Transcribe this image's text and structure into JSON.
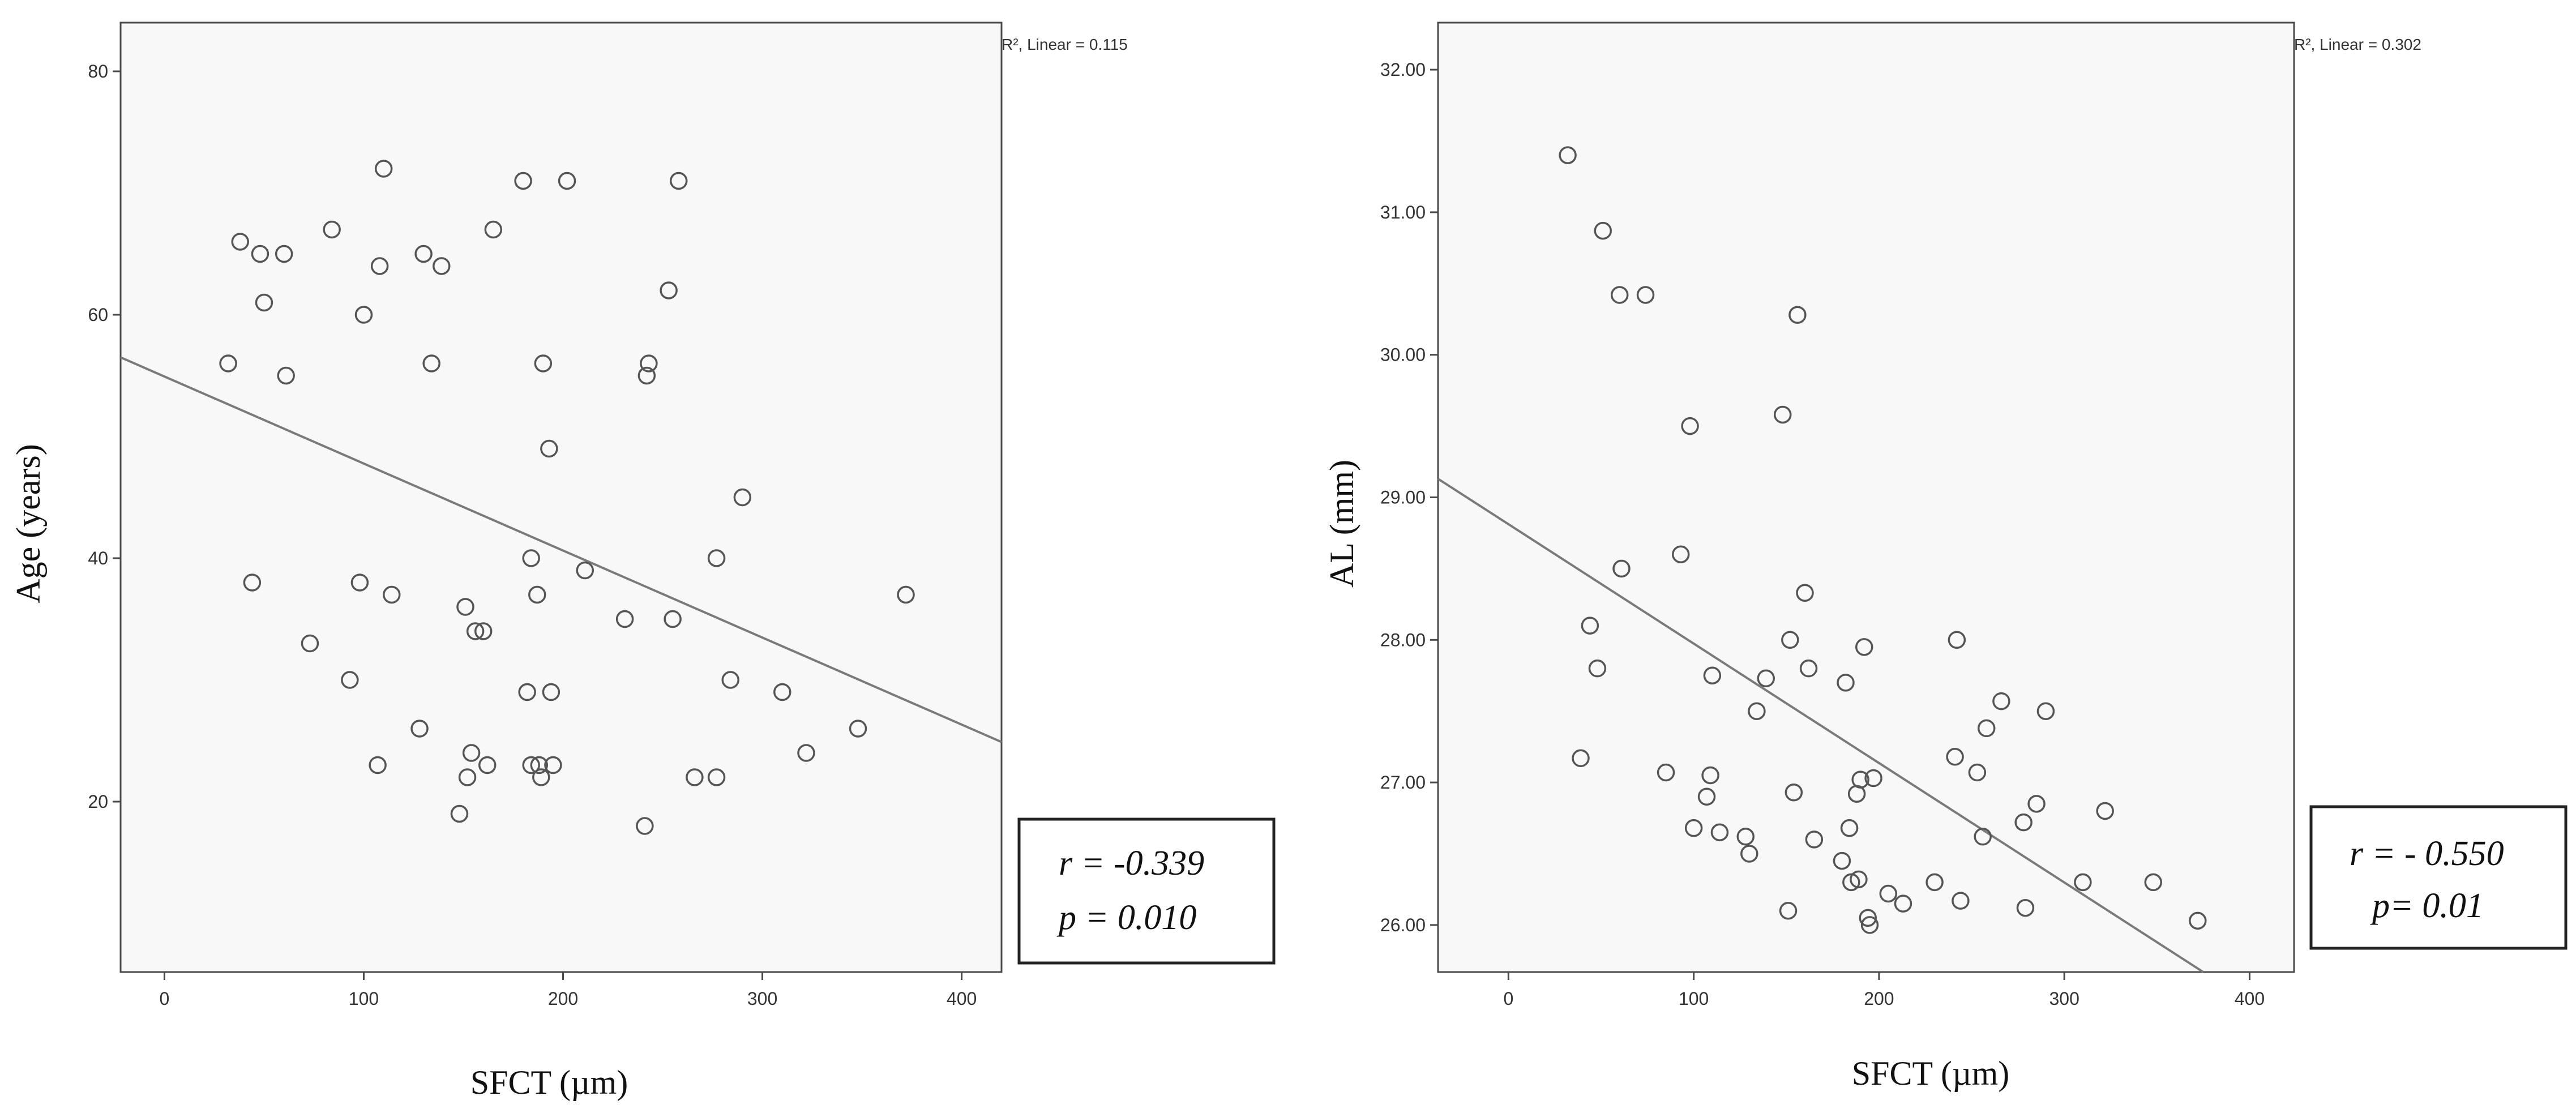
{
  "chart_data": [
    {
      "type": "scatter",
      "title": "",
      "xlabel": "SFCT (µm)",
      "ylabel": "Age  (years)",
      "xlim": [
        -22,
        420
      ],
      "ylim": [
        6,
        84
      ],
      "x_ticks": [
        0,
        100,
        200,
        300,
        400
      ],
      "x_tick_labels": [
        "0",
        "100",
        "200",
        "300",
        "400"
      ],
      "y_ticks": [
        20,
        40,
        60,
        80
      ],
      "y_tick_labels": [
        "20",
        "40",
        "60",
        "80"
      ],
      "grid": false,
      "fit_label": "R², Linear = 0.115",
      "fit_line": {
        "x": [
          -22,
          420
        ],
        "y": [
          56.5,
          24.9
        ]
      },
      "annotation_r": "r =  -0.339",
      "annotation_p": "p = 0.010",
      "points": [
        {
          "x": 32,
          "y": 56
        },
        {
          "x": 38,
          "y": 66
        },
        {
          "x": 44,
          "y": 38
        },
        {
          "x": 48,
          "y": 65
        },
        {
          "x": 50,
          "y": 61
        },
        {
          "x": 60,
          "y": 65
        },
        {
          "x": 61,
          "y": 55
        },
        {
          "x": 73,
          "y": 33
        },
        {
          "x": 84,
          "y": 67
        },
        {
          "x": 93,
          "y": 30
        },
        {
          "x": 98,
          "y": 38
        },
        {
          "x": 100,
          "y": 60
        },
        {
          "x": 107,
          "y": 23
        },
        {
          "x": 108,
          "y": 64
        },
        {
          "x": 110,
          "y": 72
        },
        {
          "x": 114,
          "y": 37
        },
        {
          "x": 128,
          "y": 26
        },
        {
          "x": 130,
          "y": 65
        },
        {
          "x": 134,
          "y": 56
        },
        {
          "x": 139,
          "y": 64
        },
        {
          "x": 148,
          "y": 19
        },
        {
          "x": 151,
          "y": 36
        },
        {
          "x": 152,
          "y": 22
        },
        {
          "x": 154,
          "y": 24
        },
        {
          "x": 156,
          "y": 34
        },
        {
          "x": 160,
          "y": 34
        },
        {
          "x": 162,
          "y": 23
        },
        {
          "x": 165,
          "y": 67
        },
        {
          "x": 180,
          "y": 71
        },
        {
          "x": 182,
          "y": 29
        },
        {
          "x": 184,
          "y": 23
        },
        {
          "x": 184,
          "y": 40
        },
        {
          "x": 187,
          "y": 37
        },
        {
          "x": 188,
          "y": 23
        },
        {
          "x": 189,
          "y": 22
        },
        {
          "x": 190,
          "y": 56
        },
        {
          "x": 193,
          "y": 49
        },
        {
          "x": 194,
          "y": 29
        },
        {
          "x": 195,
          "y": 23
        },
        {
          "x": 202,
          "y": 71
        },
        {
          "x": 211,
          "y": 39
        },
        {
          "x": 231,
          "y": 35
        },
        {
          "x": 241,
          "y": 18
        },
        {
          "x": 242,
          "y": 55
        },
        {
          "x": 243,
          "y": 56
        },
        {
          "x": 253,
          "y": 62
        },
        {
          "x": 255,
          "y": 35
        },
        {
          "x": 258,
          "y": 71
        },
        {
          "x": 266,
          "y": 22
        },
        {
          "x": 277,
          "y": 40
        },
        {
          "x": 277,
          "y": 22
        },
        {
          "x": 284,
          "y": 30
        },
        {
          "x": 290,
          "y": 45
        },
        {
          "x": 310,
          "y": 29
        },
        {
          "x": 322,
          "y": 24
        },
        {
          "x": 348,
          "y": 26
        },
        {
          "x": 372,
          "y": 37
        }
      ]
    },
    {
      "type": "scatter",
      "title": "",
      "xlabel": "SFCT (µm)",
      "ylabel": "AL  (mm)",
      "xlim": [
        -38,
        424
      ],
      "ylim": [
        25.67,
        32.33
      ],
      "x_ticks": [
        0,
        100,
        200,
        300,
        400
      ],
      "x_tick_labels": [
        "0",
        "100",
        "200",
        "300",
        "400"
      ],
      "y_ticks": [
        26,
        27,
        28,
        29,
        30,
        31,
        32
      ],
      "y_tick_labels": [
        "26.00",
        "27.00",
        "28.00",
        "29.00",
        "30.00",
        "31.00",
        "32.00"
      ],
      "grid": false,
      "fit_label": "R², Linear = 0.302",
      "fit_line": {
        "x": [
          -38,
          375
        ],
        "y": [
          29.13,
          25.67
        ]
      },
      "annotation_r": "r = - 0.550",
      "annotation_p": "p= 0.01",
      "points": [
        {
          "x": 32,
          "y": 31.4
        },
        {
          "x": 39,
          "y": 27.17
        },
        {
          "x": 44,
          "y": 28.1
        },
        {
          "x": 48,
          "y": 27.8
        },
        {
          "x": 51,
          "y": 30.87
        },
        {
          "x": 60,
          "y": 30.42
        },
        {
          "x": 61,
          "y": 28.5
        },
        {
          "x": 74,
          "y": 30.42
        },
        {
          "x": 85,
          "y": 27.07
        },
        {
          "x": 93,
          "y": 28.6
        },
        {
          "x": 98,
          "y": 29.5
        },
        {
          "x": 100,
          "y": 26.68
        },
        {
          "x": 107,
          "y": 26.9
        },
        {
          "x": 109,
          "y": 27.05
        },
        {
          "x": 110,
          "y": 27.75
        },
        {
          "x": 114,
          "y": 26.65
        },
        {
          "x": 128,
          "y": 26.62
        },
        {
          "x": 130,
          "y": 26.5
        },
        {
          "x": 134,
          "y": 27.5
        },
        {
          "x": 139,
          "y": 27.73
        },
        {
          "x": 148,
          "y": 29.58
        },
        {
          "x": 151,
          "y": 26.1
        },
        {
          "x": 152,
          "y": 28.0
        },
        {
          "x": 154,
          "y": 26.93
        },
        {
          "x": 156,
          "y": 30.28
        },
        {
          "x": 160,
          "y": 28.33
        },
        {
          "x": 162,
          "y": 27.8
        },
        {
          "x": 165,
          "y": 26.6
        },
        {
          "x": 180,
          "y": 26.45
        },
        {
          "x": 182,
          "y": 27.7
        },
        {
          "x": 184,
          "y": 26.68
        },
        {
          "x": 185,
          "y": 26.3
        },
        {
          "x": 188,
          "y": 26.92
        },
        {
          "x": 189,
          "y": 26.32
        },
        {
          "x": 190,
          "y": 27.02
        },
        {
          "x": 192,
          "y": 27.95
        },
        {
          "x": 194,
          "y": 26.05
        },
        {
          "x": 195,
          "y": 26.0
        },
        {
          "x": 197,
          "y": 27.03
        },
        {
          "x": 205,
          "y": 26.22
        },
        {
          "x": 213,
          "y": 26.15
        },
        {
          "x": 230,
          "y": 26.3
        },
        {
          "x": 241,
          "y": 27.18
        },
        {
          "x": 242,
          "y": 28.0
        },
        {
          "x": 244,
          "y": 26.17
        },
        {
          "x": 253,
          "y": 27.07
        },
        {
          "x": 256,
          "y": 26.62
        },
        {
          "x": 258,
          "y": 27.38
        },
        {
          "x": 266,
          "y": 27.57
        },
        {
          "x": 278,
          "y": 26.72
        },
        {
          "x": 279,
          "y": 26.12
        },
        {
          "x": 285,
          "y": 26.85
        },
        {
          "x": 290,
          "y": 27.5
        },
        {
          "x": 310,
          "y": 26.3
        },
        {
          "x": 322,
          "y": 26.8
        },
        {
          "x": 348,
          "y": 26.3
        },
        {
          "x": 372,
          "y": 26.03
        }
      ]
    }
  ]
}
